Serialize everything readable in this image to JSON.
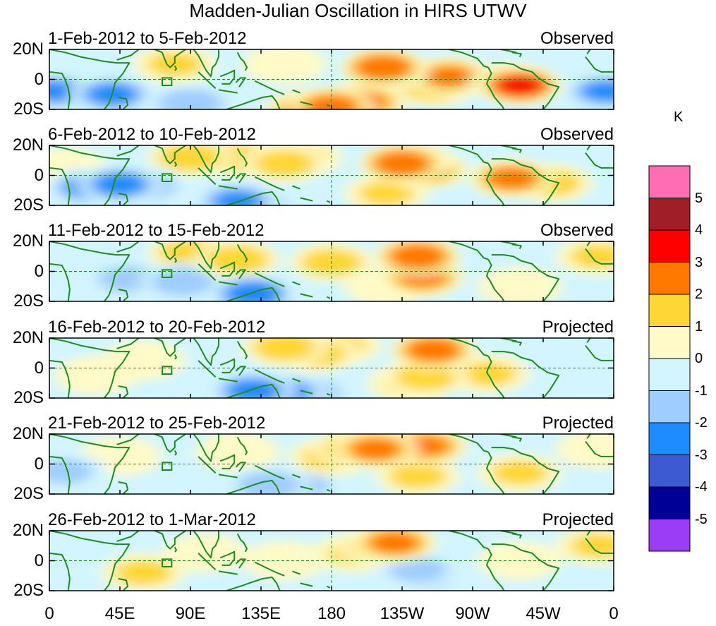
{
  "title": "Madden-Julian Oscillation in HIRS UTWV",
  "units": "K",
  "colors": {
    "coast": "#1e8c1e",
    "levels": [
      "#9a3df5",
      "#000096",
      "#3c5ad2",
      "#1e8cff",
      "#a0cdff",
      "#d2f5ff",
      "#fffac8",
      "#ffd734",
      "#ff7800",
      "#ff0000",
      "#a01e28",
      "#ff6eb4"
    ]
  },
  "colorbar": {
    "tick_labels": [
      "5",
      "4",
      "3",
      "2",
      "1",
      "0",
      "-1",
      "-2",
      "-3",
      "-4",
      "-5"
    ]
  },
  "lat_labels": [
    "20N",
    "0",
    "20S"
  ],
  "lon_labels": [
    "0",
    "45E",
    "90E",
    "135E",
    "180",
    "135W",
    "90W",
    "45W",
    "0"
  ],
  "panels": [
    {
      "label": "1-Feb-2012 to 5-Feb-2012",
      "type": "Observed",
      "blobs": [
        [
          5,
          -8,
          -2.2
        ],
        [
          40,
          -10,
          -2.4
        ],
        [
          22,
          -10,
          -2.0
        ],
        [
          90,
          -16,
          -2.0
        ],
        [
          180,
          -18,
          2.6
        ],
        [
          165,
          -20,
          2.2
        ],
        [
          200,
          -15,
          2.4
        ],
        [
          215,
          6,
          2.5
        ],
        [
          213,
          8,
          3
        ],
        [
          245,
          -5,
          1.8
        ],
        [
          255,
          2,
          2.2
        ],
        [
          355,
          -8,
          -2.2
        ],
        [
          295,
          -2,
          3.0
        ],
        [
          300,
          -4,
          3.2
        ],
        [
          80,
          10,
          1.2
        ],
        [
          150,
          10,
          1.0
        ]
      ]
    },
    {
      "label": "6-Feb-2012 to 10-Feb-2012",
      "type": "Observed",
      "blobs": [
        [
          25,
          -8,
          -2.2
        ],
        [
          45,
          -6,
          -2.6
        ],
        [
          60,
          -7,
          -2.0
        ],
        [
          120,
          -17,
          -2.2
        ],
        [
          130,
          -18,
          -1.8
        ],
        [
          90,
          12,
          1.8
        ],
        [
          120,
          12,
          1.5
        ],
        [
          150,
          8,
          1.6
        ],
        [
          160,
          12,
          1.2
        ],
        [
          225,
          8,
          3
        ],
        [
          240,
          4,
          2.2
        ],
        [
          230,
          10,
          2.6
        ],
        [
          295,
          -2,
          2.4
        ],
        [
          320,
          -5,
          1.5
        ],
        [
          215,
          -12,
          1.2
        ],
        [
          10,
          5,
          0.7
        ]
      ]
    },
    {
      "label": "11-Feb-2012 to 15-Feb-2012",
      "type": "Observed",
      "blobs": [
        [
          50,
          -5,
          -1.4
        ],
        [
          85,
          -7,
          -1.8
        ],
        [
          110,
          -8,
          -1.6
        ],
        [
          130,
          -15,
          -3.0
        ],
        [
          135,
          -16,
          -2.6
        ],
        [
          90,
          12,
          1.7
        ],
        [
          120,
          8,
          1.8
        ],
        [
          180,
          6,
          1.6
        ],
        [
          235,
          10,
          3.0
        ],
        [
          238,
          -4,
          2.2
        ],
        [
          300,
          -10,
          1.0
        ],
        [
          350,
          10,
          1.2
        ],
        [
          5,
          -6,
          -0.6
        ],
        [
          215,
          -10,
          1.0
        ]
      ]
    },
    {
      "label": "16-Feb-2012 to 20-Feb-2012",
      "type": "Projected",
      "blobs": [
        [
          150,
          14,
          1.8
        ],
        [
          170,
          10,
          1.6
        ],
        [
          185,
          15,
          1.2
        ],
        [
          60,
          5,
          0.8
        ],
        [
          110,
          -5,
          -1.0
        ],
        [
          130,
          -15,
          -2.6
        ],
        [
          150,
          -16,
          -2.4
        ],
        [
          165,
          -16,
          -1.8
        ],
        [
          245,
          12,
          2.8
        ],
        [
          240,
          -6,
          1.6
        ],
        [
          230,
          -10,
          1.2
        ],
        [
          280,
          -4,
          1.2
        ],
        [
          30,
          -5,
          0.6
        ]
      ]
    },
    {
      "label": "21-Feb-2012 to 25-Feb-2012",
      "type": "Projected",
      "blobs": [
        [
          195,
          10,
          2.0
        ],
        [
          208,
          10,
          2.4
        ],
        [
          180,
          5,
          1.5
        ],
        [
          120,
          8,
          1.0
        ],
        [
          10,
          -5,
          -1.2
        ],
        [
          45,
          5,
          0.6
        ],
        [
          140,
          -14,
          -1.8
        ],
        [
          160,
          -14,
          -1.4
        ],
        [
          240,
          12,
          2.2
        ],
        [
          235,
          -8,
          1.3
        ],
        [
          300,
          -6,
          1.2
        ],
        [
          350,
          10,
          1.0
        ]
      ]
    },
    {
      "label": "26-Feb-2012 to 1-Mar-2012",
      "type": "Projected",
      "blobs": [
        [
          210,
          10,
          1.8
        ],
        [
          220,
          12,
          2.4
        ],
        [
          195,
          5,
          1.2
        ],
        [
          60,
          -8,
          1.3
        ],
        [
          150,
          0,
          0.5
        ],
        [
          235,
          -6,
          -1.4
        ],
        [
          240,
          -12,
          -1.2
        ],
        [
          300,
          0,
          0.8
        ],
        [
          350,
          10,
          1.2
        ],
        [
          100,
          5,
          0.6
        ]
      ]
    }
  ]
}
